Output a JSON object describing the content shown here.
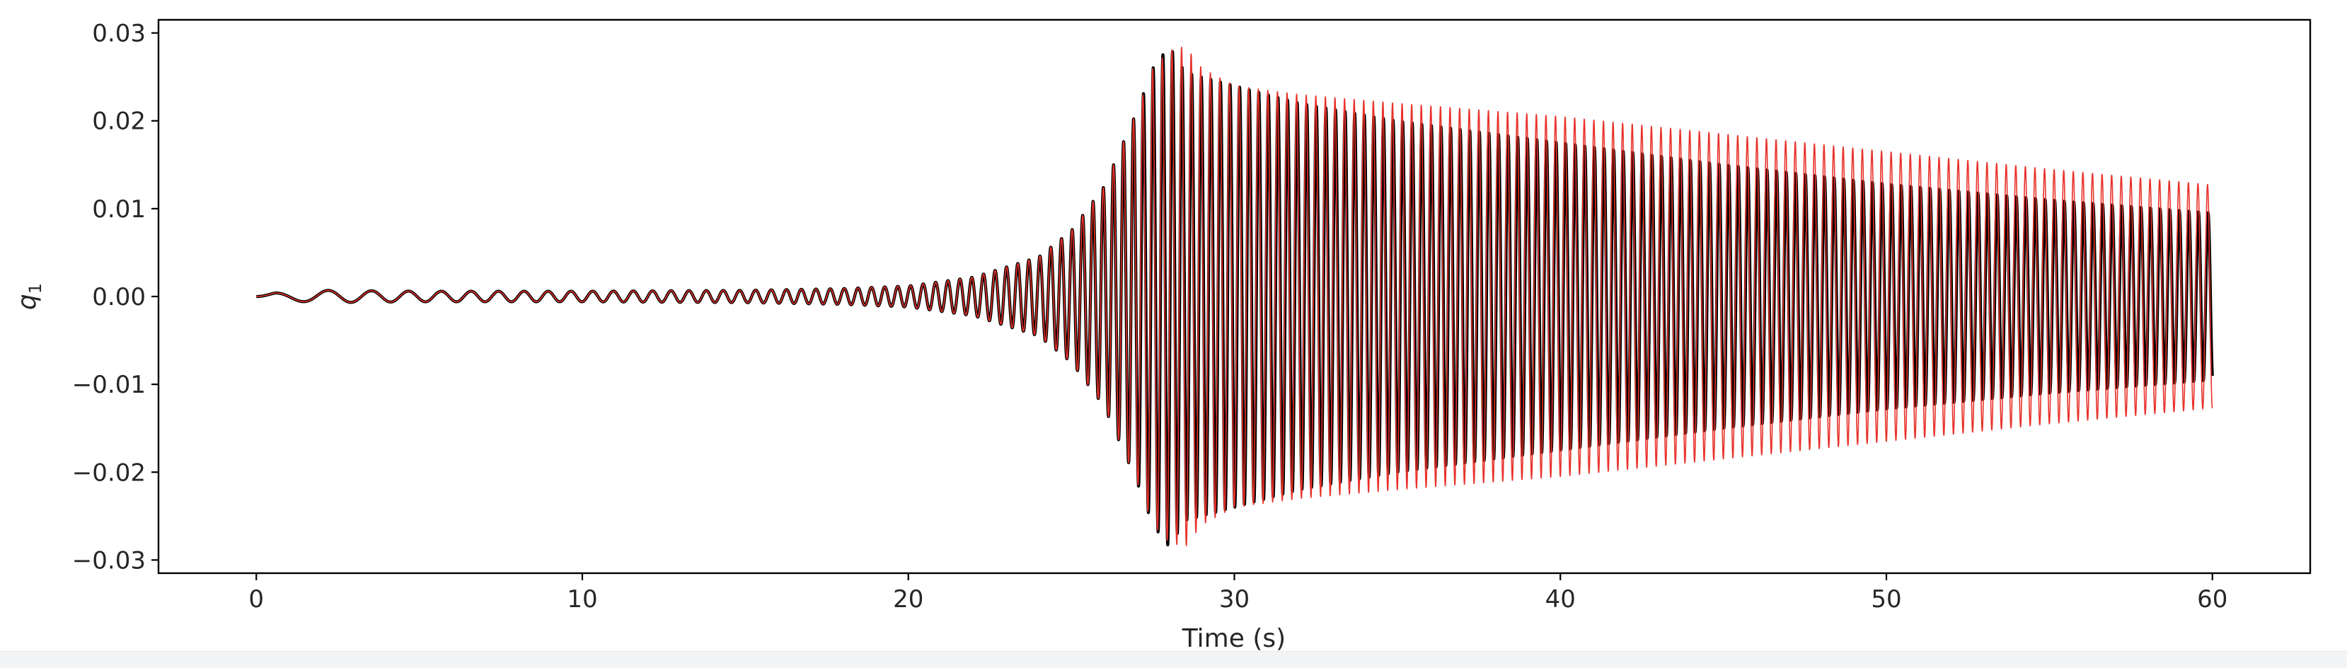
{
  "chart_data": {
    "type": "line",
    "xlabel": "Time (s)",
    "ylabel": "q",
    "ylabel_subscript": "1",
    "xlim": [
      -3,
      63
    ],
    "ylim": [
      -0.0315,
      0.0315
    ],
    "xticks": [
      0,
      10,
      20,
      30,
      40,
      50,
      60
    ],
    "xtick_labels": [
      "0",
      "10",
      "20",
      "30",
      "40",
      "50",
      "60"
    ],
    "yticks": [
      -0.03,
      -0.02,
      -0.01,
      0.0,
      0.01,
      0.02,
      0.03
    ],
    "ytick_labels": [
      "−0.03",
      "−0.02",
      "−0.01",
      "0.00",
      "0.01",
      "0.02",
      "0.03"
    ],
    "grid": false,
    "legend": "none",
    "series": [
      {
        "color": "#000000",
        "line_width": "thick",
        "envelope": {
          "t": [
            0,
            2,
            5,
            10,
            15,
            18,
            20,
            22,
            24,
            25,
            26,
            27,
            27.5,
            28,
            28.5,
            29,
            30,
            32,
            35,
            40,
            45,
            50,
            55,
            60
          ],
          "amplitude": [
            0.0003,
            0.0007,
            0.0006,
            0.0006,
            0.0007,
            0.0009,
            0.0012,
            0.0022,
            0.0045,
            0.0075,
            0.0125,
            0.021,
            0.026,
            0.0285,
            0.0255,
            0.025,
            0.024,
            0.022,
            0.02,
            0.0175,
            0.015,
            0.0128,
            0.011,
            0.0095
          ]
        }
      },
      {
        "color": "#e8312a",
        "line_width": "thin",
        "envelope": {
          "t": [
            0,
            2,
            5,
            10,
            15,
            18,
            20,
            22,
            24,
            25,
            26,
            27,
            27.5,
            28,
            28.5,
            29,
            30,
            32,
            35,
            40,
            45,
            50,
            55,
            60
          ],
          "amplitude": [
            0.0003,
            0.0007,
            0.0006,
            0.0006,
            0.0007,
            0.0009,
            0.0012,
            0.0022,
            0.0045,
            0.0075,
            0.0125,
            0.021,
            0.026,
            0.028,
            0.0285,
            0.026,
            0.024,
            0.023,
            0.022,
            0.0205,
            0.0185,
            0.0165,
            0.0145,
            0.0127
          ]
        }
      }
    ]
  }
}
